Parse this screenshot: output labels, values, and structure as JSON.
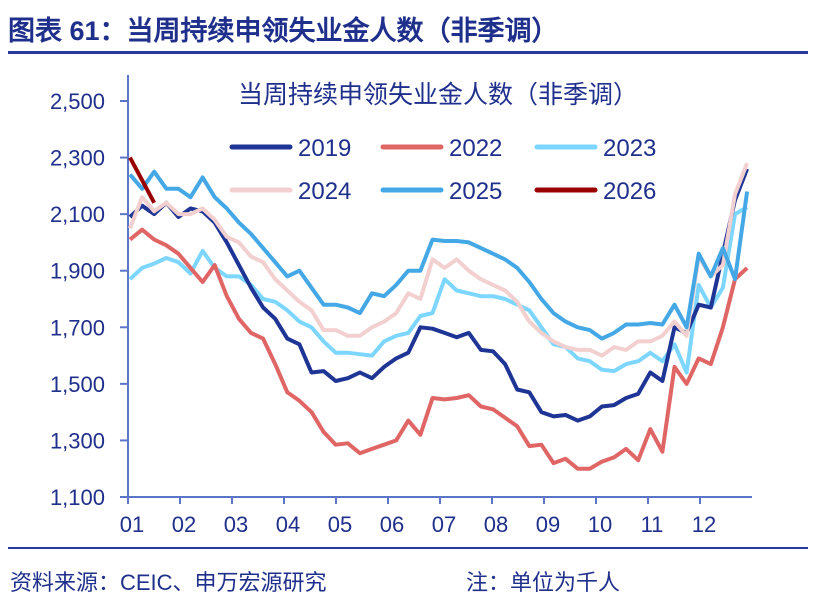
{
  "header": {
    "title": "图表 61：当周持续申领失业金人数（非季调）"
  },
  "footer": {
    "source": "资料来源：CEIC、申万宏源研究",
    "note": "注：单位为千人"
  },
  "chart_data": {
    "type": "line",
    "title": "当周持续申领失业金人数（非季调）",
    "xlabel": "",
    "ylabel": "",
    "x_tick_labels": [
      "01",
      "02",
      "03",
      "04",
      "05",
      "06",
      "07",
      "08",
      "09",
      "10",
      "11",
      "12"
    ],
    "y_tick_labels": [
      "1,100",
      "1,300",
      "1,500",
      "1,700",
      "1,900",
      "2,100",
      "2,300",
      "2,500"
    ],
    "ylim": [
      1100,
      2500
    ],
    "x_unit": "week of year (52 weeks)",
    "grid": false,
    "legend_placement": "top-center",
    "series": [
      {
        "name": "2019",
        "color": "#1f3595",
        "values": [
          2090,
          2130,
          2100,
          2140,
          2090,
          2120,
          2110,
          2070,
          2000,
          1920,
          1840,
          1770,
          1730,
          1660,
          1640,
          1540,
          1545,
          1510,
          1520,
          1540,
          1520,
          1560,
          1590,
          1610,
          1700,
          1695,
          1680,
          1665,
          1680,
          1620,
          1615,
          1570,
          1480,
          1470,
          1400,
          1385,
          1390,
          1370,
          1385,
          1420,
          1425,
          1450,
          1465,
          1540,
          1510,
          1700,
          1680,
          1780,
          1770,
          1960,
          2150,
          2260
        ]
      },
      {
        "name": "2022",
        "color": "#e06666",
        "values": [
          2010,
          2045,
          2010,
          1990,
          1960,
          1910,
          1860,
          1920,
          1810,
          1730,
          1680,
          1660,
          1570,
          1470,
          1440,
          1400,
          1330,
          1285,
          1290,
          1255,
          1270,
          1285,
          1300,
          1370,
          1320,
          1450,
          1445,
          1450,
          1460,
          1420,
          1410,
          1380,
          1350,
          1280,
          1285,
          1220,
          1235,
          1200,
          1200,
          1225,
          1240,
          1270,
          1230,
          1340,
          1260,
          1560,
          1500,
          1590,
          1570,
          1700,
          1870,
          1910
        ]
      },
      {
        "name": "2023",
        "color": "#7dd6ff",
        "values": [
          1870,
          1910,
          1925,
          1945,
          1930,
          1890,
          1970,
          1910,
          1880,
          1880,
          1850,
          1800,
          1790,
          1760,
          1720,
          1700,
          1650,
          1610,
          1610,
          1605,
          1600,
          1650,
          1670,
          1680,
          1740,
          1750,
          1870,
          1830,
          1820,
          1810,
          1810,
          1800,
          1780,
          1760,
          1700,
          1640,
          1630,
          1590,
          1580,
          1550,
          1545,
          1570,
          1580,
          1610,
          1580,
          1640,
          1540,
          1850,
          1770,
          1840,
          2100,
          2125
        ]
      },
      {
        "name": "2024",
        "color": "#f2d0cf",
        "values": [
          2050,
          2160,
          2110,
          2140,
          2100,
          2100,
          2120,
          2080,
          2020,
          2000,
          1950,
          1930,
          1870,
          1830,
          1790,
          1760,
          1690,
          1690,
          1670,
          1670,
          1700,
          1720,
          1750,
          1820,
          1800,
          1940,
          1910,
          1940,
          1900,
          1870,
          1850,
          1830,
          1790,
          1720,
          1680,
          1650,
          1630,
          1620,
          1620,
          1600,
          1630,
          1620,
          1650,
          1650,
          1670,
          1720,
          1670,
          1950,
          1880,
          1920,
          2170,
          2280
        ]
      },
      {
        "name": "2025",
        "color": "#45a8e6",
        "values": [
          2240,
          2190,
          2250,
          2190,
          2190,
          2160,
          2230,
          2160,
          2120,
          2070,
          2030,
          1980,
          1930,
          1880,
          1900,
          1840,
          1780,
          1780,
          1770,
          1750,
          1820,
          1810,
          1850,
          1900,
          1900,
          2010,
          2005,
          2005,
          2000,
          1980,
          1960,
          1940,
          1910,
          1860,
          1800,
          1750,
          1720,
          1700,
          1690,
          1660,
          1680,
          1710,
          1710,
          1715,
          1710,
          1780,
          1700,
          1960,
          1880,
          1980,
          1870,
          2180
        ]
      },
      {
        "name": "2026",
        "color": "#990000",
        "values": [
          2300,
          2220,
          2140
        ]
      }
    ]
  }
}
